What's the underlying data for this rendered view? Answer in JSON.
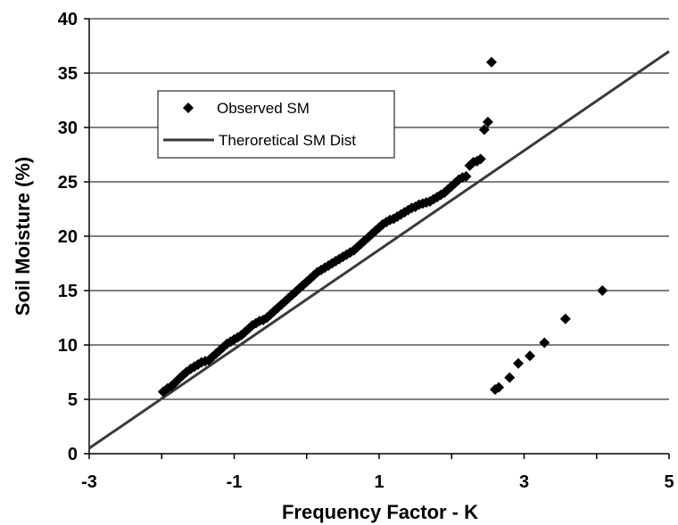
{
  "chart_data": {
    "type": "scatter",
    "title": "",
    "xlabel": "Frequency Factor - K",
    "ylabel": "Soil Moisture (%)",
    "xlim": [
      -3,
      5
    ],
    "ylim": [
      0,
      40
    ],
    "x_ticks": [
      "-3",
      "-1",
      "1",
      "3",
      "5"
    ],
    "y_ticks": [
      "0",
      "5",
      "10",
      "15",
      "20",
      "25",
      "30",
      "35",
      "40"
    ],
    "grid": "horizontal",
    "legend_placement": "upper-left",
    "series": [
      {
        "name": "Observed SM",
        "marker": "diamond",
        "color": "#000000",
        "x": [
          -1.98,
          -1.92,
          -1.87,
          -1.82,
          -1.76,
          -1.71,
          -1.66,
          -1.6,
          -1.55,
          -1.5,
          -1.45,
          -1.4,
          -1.35,
          -1.3,
          -1.25,
          -1.2,
          -1.15,
          -1.1,
          -1.05,
          -1.0,
          -0.95,
          -0.9,
          -0.85,
          -0.8,
          -0.75,
          -0.7,
          -0.65,
          -0.6,
          -0.55,
          -0.5,
          -0.45,
          -0.4,
          -0.35,
          -0.3,
          -0.25,
          -0.2,
          -0.15,
          -0.1,
          -0.05,
          0.0,
          0.05,
          0.1,
          0.15,
          0.2,
          0.25,
          0.3,
          0.35,
          0.4,
          0.45,
          0.5,
          0.55,
          0.6,
          0.65,
          0.7,
          0.75,
          0.8,
          0.85,
          0.9,
          0.95,
          1.0,
          1.05,
          1.1,
          1.15,
          1.2,
          1.25,
          1.3,
          1.35,
          1.4,
          1.45,
          1.5,
          1.55,
          1.6,
          1.65,
          1.7,
          1.75,
          1.8,
          1.85,
          1.9,
          1.95,
          2.0,
          2.05,
          2.1,
          2.15,
          2.2,
          2.25,
          2.3,
          2.35,
          2.4,
          2.45,
          2.5,
          2.55,
          2.6,
          2.65,
          2.8,
          2.92,
          3.08,
          3.28,
          3.57,
          4.08
        ],
        "y": [
          5.7,
          6.0,
          6.2,
          6.5,
          6.9,
          7.2,
          7.5,
          7.8,
          8.0,
          8.2,
          8.4,
          8.5,
          8.6,
          8.9,
          9.2,
          9.5,
          9.8,
          10.1,
          10.3,
          10.5,
          10.7,
          10.9,
          11.2,
          11.5,
          11.8,
          12.0,
          12.2,
          12.3,
          12.5,
          12.8,
          13.1,
          13.4,
          13.7,
          14.0,
          14.3,
          14.6,
          14.9,
          15.2,
          15.5,
          15.8,
          16.1,
          16.4,
          16.7,
          16.9,
          17.1,
          17.3,
          17.5,
          17.7,
          17.9,
          18.1,
          18.3,
          18.5,
          18.7,
          19.0,
          19.3,
          19.6,
          19.9,
          20.2,
          20.5,
          20.8,
          21.1,
          21.3,
          21.5,
          21.6,
          21.8,
          22.0,
          22.2,
          22.4,
          22.6,
          22.7,
          22.9,
          23.0,
          23.1,
          23.2,
          23.4,
          23.6,
          23.8,
          24.0,
          24.3,
          24.6,
          24.9,
          25.2,
          25.4,
          25.5,
          26.5,
          26.8,
          26.9,
          27.1,
          29.8,
          30.5,
          36.0,
          5.9,
          6.1,
          7.0,
          8.3,
          9.0,
          10.2,
          12.4,
          15.0
        ],
        "note_points": "approximate readings"
      },
      {
        "name": "Theroretical SM Dist",
        "kind": "line",
        "color": "#3a3a3a",
        "x": [
          -3.0,
          5.0
        ],
        "y": [
          0.5,
          37.0
        ]
      }
    ]
  }
}
